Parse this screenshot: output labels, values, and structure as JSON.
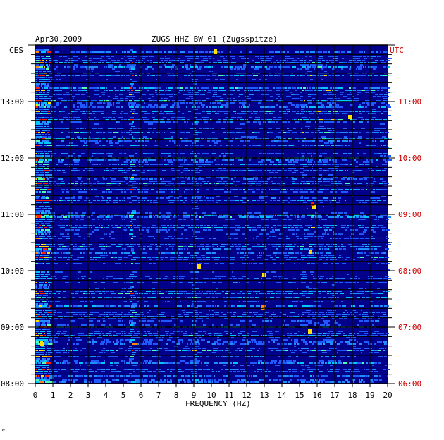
{
  "chart_data": {
    "type": "heatmap",
    "date": "Apr30,2009",
    "title": "ZUGS HHZ BW 01 (Zugsspitze)",
    "xlabel": "FREQUENCY (HZ)",
    "left_timezone": "CES",
    "right_timezone": "UTC",
    "xlim": [
      0,
      20
    ],
    "x_ticks": [
      "0",
      "1",
      "2",
      "3",
      "4",
      "5",
      "6",
      "7",
      "8",
      "9",
      "10",
      "11",
      "12",
      "13",
      "14",
      "15",
      "16",
      "17",
      "18",
      "19",
      "20"
    ],
    "y_ticks_left": [
      "13:00",
      "12:00",
      "11:00",
      "10:00",
      "09:00",
      "08:00"
    ],
    "y_ticks_right": [
      "11:00",
      "10:00",
      "09:00",
      "08:00",
      "07:00",
      "06:00"
    ],
    "time_range_local": [
      "08:00",
      "13:50"
    ],
    "colors": {
      "background_low": "#00008b",
      "mid": "#1e5aff",
      "high": "#00c8ff",
      "peak": "#ffe000",
      "max": "#ff2000",
      "utc_label": "#cc0000",
      "grid": "#000000"
    }
  },
  "footer_mark": "ʷ"
}
